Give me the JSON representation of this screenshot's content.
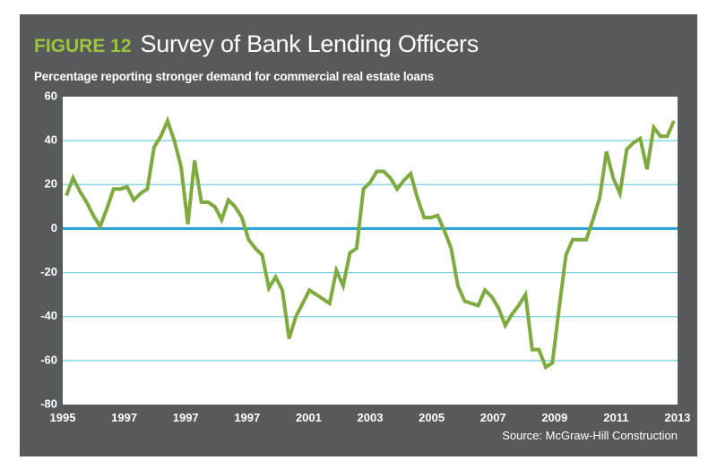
{
  "header": {
    "figure_label": "FIGURE 12",
    "title": "Survey of Bank Lending Officers"
  },
  "subtitle": "Percentage reporting stronger demand for commercial real estate loans",
  "source": "Source: McGraw-Hill Construction",
  "colors": {
    "panel_bg": "#58595b",
    "plot_bg": "#ffffff",
    "gridline": "#6fd0e6",
    "zero_line": "#1e9fd6",
    "series": "#7faa3f",
    "label_accent": "#9bc53d"
  },
  "chart_data": {
    "type": "line",
    "title": "Survey of Bank Lending Officers",
    "ylabel": "",
    "xlabel": "",
    "ylim": [
      -80,
      60
    ],
    "y_ticks": [
      60,
      40,
      20,
      0,
      -20,
      -40,
      -60,
      -80
    ],
    "x_tick_labels": [
      "1995",
      "1997",
      "1997",
      "1997",
      "2001",
      "2003",
      "2005",
      "2007",
      "2009",
      "2011",
      "2013"
    ],
    "grid": true,
    "series": [
      {
        "values": [
          15,
          23,
          17,
          12,
          6,
          1,
          9,
          18,
          18,
          19,
          13,
          16,
          18,
          37,
          42,
          49,
          40,
          28,
          2,
          31,
          12,
          12,
          10,
          4,
          13,
          10,
          5,
          -5,
          -9,
          -12,
          -27,
          -22,
          -28,
          -50,
          -40,
          -34,
          -28,
          -30,
          -32,
          -34,
          -19,
          -26,
          -11,
          -9,
          18,
          21,
          26,
          26,
          23,
          18,
          22,
          25,
          14,
          5,
          5,
          6,
          -1,
          -9,
          -26,
          -33,
          -34,
          -35,
          -28,
          -31,
          -36,
          -44,
          -39,
          -35,
          -30,
          -55,
          -55,
          -63,
          -61,
          -36,
          -12,
          -5,
          -5,
          -5,
          4,
          14,
          35,
          23,
          16,
          36,
          39,
          41,
          27,
          46,
          42,
          42,
          49
        ]
      }
    ]
  }
}
